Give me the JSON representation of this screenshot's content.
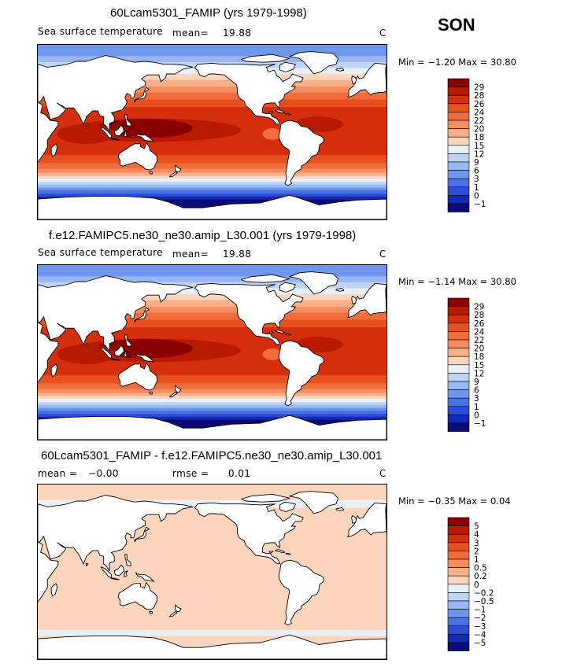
{
  "season": "SON",
  "panels": [
    {
      "title": "60Lcam5301_FAMIP (yrs 1979-1998)",
      "variable": "Sea surface temperature",
      "mean_label": "mean=",
      "mean_value": "19.88",
      "units": "C",
      "minmax": "Min =  −1.20 Max =  30.80"
    },
    {
      "title": "f.e12.FAMIPC5.ne30_ne30.amip_L30.001 (yrs 1979-1998)",
      "variable": "Sea surface temperature",
      "mean_label": "mean=",
      "mean_value": "19.88",
      "units": "C",
      "minmax": "Min =  −1.14 Max =  30.80"
    },
    {
      "title": "60Lcam5301_FAMIP - f.e12.FAMIPC5.ne30_ne30.amip_L30.001",
      "mean_label": "mean =",
      "mean_value": "−0.00",
      "rmse_label": "rmse =",
      "rmse_value": "0.01",
      "units": "C",
      "minmax": "Min =  −0.35 Max =   0.04"
    }
  ],
  "chart_data": [
    {
      "type": "heatmap",
      "title": "60Lcam5301_FAMIP (yrs 1979-1998)",
      "subtitle": "Sea surface temperature",
      "mean": 19.88,
      "min": -1.2,
      "max": 30.8,
      "units": "C",
      "colorbar_levels": [
        "29",
        "28",
        "26",
        "24",
        "22",
        "20",
        "18",
        "15",
        "12",
        "9",
        "6",
        "3",
        "1",
        "0",
        "−1"
      ],
      "colorbar_colors": [
        "#8a0000",
        "#b81a00",
        "#d42e0d",
        "#e8501e",
        "#f26d3c",
        "#f78c5e",
        "#fbb08a",
        "#fdd5bd",
        "#e8f0f8",
        "#bfd4f7",
        "#98b8f5",
        "#6f96ef",
        "#4a72e8",
        "#2a4ed8",
        "#1328b4",
        "#0a0a78"
      ],
      "grid": false
    },
    {
      "type": "heatmap",
      "title": "f.e12.FAMIPC5.ne30_ne30.amip_L30.001 (yrs 1979-1998)",
      "subtitle": "Sea surface temperature",
      "mean": 19.88,
      "min": -1.14,
      "max": 30.8,
      "units": "C",
      "colorbar_levels": [
        "29",
        "28",
        "26",
        "24",
        "22",
        "20",
        "18",
        "15",
        "12",
        "9",
        "6",
        "3",
        "1",
        "0",
        "−1"
      ],
      "colorbar_colors": [
        "#8a0000",
        "#b81a00",
        "#d42e0d",
        "#e8501e",
        "#f26d3c",
        "#f78c5e",
        "#fbb08a",
        "#fdd5bd",
        "#e8f0f8",
        "#bfd4f7",
        "#98b8f5",
        "#6f96ef",
        "#4a72e8",
        "#2a4ed8",
        "#1328b4",
        "#0a0a78"
      ],
      "grid": false
    },
    {
      "type": "heatmap",
      "title": "60Lcam5301_FAMIP - f.e12.FAMIPC5.ne30_ne30.amip_L30.001",
      "mean": -0.0,
      "rmse": 0.01,
      "min": -0.35,
      "max": 0.04,
      "units": "C",
      "colorbar_levels": [
        "5",
        "4",
        "3",
        "2",
        "1",
        "0.5",
        "0.2",
        "0",
        "−0.2",
        "−0.5",
        "−1",
        "−2",
        "−3",
        "−4",
        "−5"
      ],
      "colorbar_colors": [
        "#8a0000",
        "#b81a00",
        "#d42e0d",
        "#e8501e",
        "#f26d3c",
        "#f78c5e",
        "#fbb08a",
        "#fdd5bd",
        "#e8f0f8",
        "#bfd4f7",
        "#98b8f5",
        "#6f96ef",
        "#4a72e8",
        "#2a4ed8",
        "#1328b4",
        "#0a0a78"
      ],
      "grid": false
    }
  ]
}
